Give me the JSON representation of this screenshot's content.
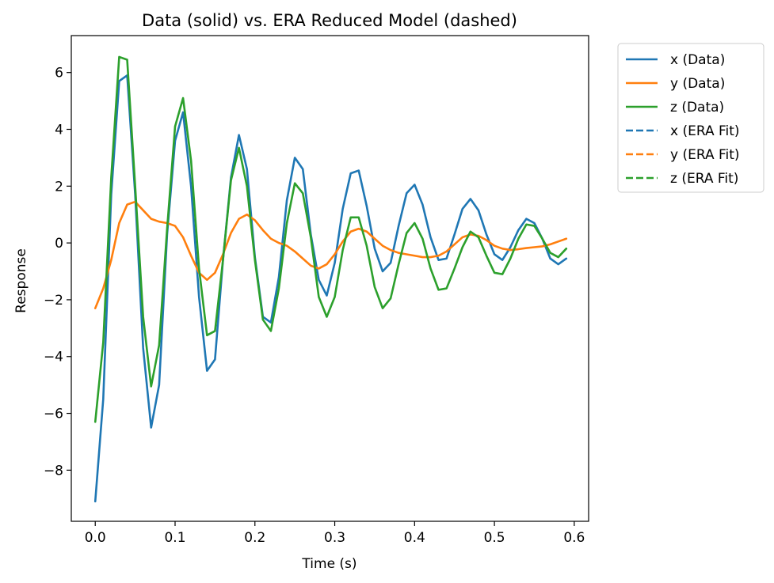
{
  "chart_data": {
    "type": "line",
    "title": "Data (solid) vs. ERA Reduced Model (dashed)",
    "xlabel": "Time (s)",
    "ylabel": "Response",
    "xlim": [
      -0.03,
      0.618
    ],
    "ylim": [
      -9.8,
      7.3
    ],
    "x_ticks": [
      0.0,
      0.1,
      0.2,
      0.3,
      0.4,
      0.5,
      0.6
    ],
    "x_tick_labels": [
      "0.0",
      "0.1",
      "0.2",
      "0.3",
      "0.4",
      "0.5",
      "0.6"
    ],
    "y_ticks": [
      -8,
      -6,
      -4,
      -2,
      0,
      2,
      4,
      6
    ],
    "y_tick_labels": [
      "−8",
      "−6",
      "−4",
      "−2",
      "0",
      "2",
      "4",
      "6"
    ],
    "grid": false,
    "legend_position": "outside-top-right",
    "x": [
      0.0,
      0.01,
      0.02,
      0.03,
      0.04,
      0.05,
      0.06,
      0.07,
      0.08,
      0.09,
      0.1,
      0.11,
      0.12,
      0.13,
      0.14,
      0.15,
      0.16,
      0.17,
      0.18,
      0.19,
      0.2,
      0.21,
      0.22,
      0.23,
      0.24,
      0.25,
      0.26,
      0.27,
      0.28,
      0.29,
      0.3,
      0.31,
      0.32,
      0.33,
      0.34,
      0.35,
      0.36,
      0.37,
      0.38,
      0.39,
      0.4,
      0.41,
      0.42,
      0.43,
      0.44,
      0.45,
      0.46,
      0.47,
      0.48,
      0.49,
      0.5,
      0.51,
      0.52,
      0.53,
      0.54,
      0.55,
      0.56,
      0.57,
      0.58,
      0.59
    ],
    "series": [
      {
        "name": "x (Data)",
        "color": "#1f77b4",
        "dash": "solid",
        "values": [
          -9.1,
          -5.5,
          1.7,
          5.7,
          5.9,
          1.7,
          -3.7,
          -6.5,
          -5.0,
          0.3,
          3.6,
          4.6,
          2.0,
          -1.9,
          -4.5,
          -4.1,
          -0.6,
          2.3,
          3.8,
          2.6,
          -0.5,
          -2.6,
          -2.8,
          -1.2,
          1.5,
          3.0,
          2.6,
          0.3,
          -1.3,
          -1.85,
          -0.7,
          1.2,
          2.45,
          2.55,
          1.3,
          -0.2,
          -1.0,
          -0.7,
          0.6,
          1.75,
          2.05,
          1.35,
          0.2,
          -0.6,
          -0.55,
          0.3,
          1.2,
          1.55,
          1.15,
          0.3,
          -0.4,
          -0.6,
          -0.15,
          0.45,
          0.85,
          0.7,
          0.15,
          -0.55,
          -0.75,
          -0.55
        ]
      },
      {
        "name": "y (Data)",
        "color": "#ff7f0e",
        "dash": "solid",
        "values": [
          -2.3,
          -1.6,
          -0.6,
          0.7,
          1.35,
          1.45,
          1.15,
          0.85,
          0.75,
          0.7,
          0.6,
          0.2,
          -0.45,
          -1.05,
          -1.3,
          -1.05,
          -0.4,
          0.35,
          0.85,
          1.0,
          0.8,
          0.45,
          0.15,
          0.0,
          -0.1,
          -0.3,
          -0.55,
          -0.8,
          -0.9,
          -0.75,
          -0.4,
          0.05,
          0.4,
          0.5,
          0.4,
          0.15,
          -0.1,
          -0.25,
          -0.35,
          -0.4,
          -0.45,
          -0.5,
          -0.5,
          -0.45,
          -0.3,
          -0.05,
          0.2,
          0.3,
          0.25,
          0.1,
          -0.1,
          -0.2,
          -0.25,
          -0.22,
          -0.18,
          -0.15,
          -0.12,
          -0.05,
          0.05,
          0.15
        ]
      },
      {
        "name": "z (Data)",
        "color": "#2ca02c",
        "dash": "solid",
        "values": [
          -6.3,
          -3.5,
          2.3,
          6.55,
          6.45,
          2.0,
          -2.6,
          -5.05,
          -3.6,
          0.5,
          4.1,
          5.1,
          2.9,
          -0.9,
          -3.25,
          -3.1,
          -0.6,
          2.2,
          3.35,
          2.0,
          -0.6,
          -2.7,
          -3.1,
          -1.6,
          0.7,
          2.1,
          1.75,
          0.2,
          -1.9,
          -2.6,
          -1.9,
          -0.25,
          0.9,
          0.9,
          -0.1,
          -1.55,
          -2.3,
          -1.95,
          -0.75,
          0.35,
          0.7,
          0.15,
          -0.9,
          -1.65,
          -1.6,
          -0.9,
          -0.15,
          0.4,
          0.2,
          -0.45,
          -1.05,
          -1.1,
          -0.55,
          0.15,
          0.65,
          0.6,
          0.15,
          -0.35,
          -0.5,
          -0.2
        ]
      },
      {
        "name": "x (ERA Fit)",
        "color": "#1f77b4",
        "dash": "dashed",
        "values": [
          -9.1,
          -5.5,
          1.7,
          5.7,
          5.9,
          1.7,
          -3.7,
          -6.5,
          -5.0,
          0.3,
          3.6,
          4.6,
          2.0,
          -1.9,
          -4.5,
          -4.1,
          -0.6,
          2.3,
          3.8,
          2.6,
          -0.5,
          -2.6,
          -2.8,
          -1.2,
          1.5,
          3.0,
          2.6,
          0.3,
          -1.3,
          -1.85,
          -0.7,
          1.2,
          2.45,
          2.55,
          1.3,
          -0.2,
          -1.0,
          -0.7,
          0.6,
          1.75,
          2.05,
          1.35,
          0.2,
          -0.6,
          -0.55,
          0.3,
          1.2,
          1.55,
          1.15,
          0.3,
          -0.4,
          -0.6,
          -0.15,
          0.45,
          0.85,
          0.7,
          0.15,
          -0.55,
          -0.75,
          -0.55
        ]
      },
      {
        "name": "y (ERA Fit)",
        "color": "#ff7f0e",
        "dash": "dashed",
        "values": [
          -2.3,
          -1.6,
          -0.6,
          0.7,
          1.35,
          1.45,
          1.15,
          0.85,
          0.75,
          0.7,
          0.6,
          0.2,
          -0.45,
          -1.05,
          -1.3,
          -1.05,
          -0.4,
          0.35,
          0.85,
          1.0,
          0.8,
          0.45,
          0.15,
          0.0,
          -0.1,
          -0.3,
          -0.55,
          -0.8,
          -0.9,
          -0.75,
          -0.4,
          0.05,
          0.4,
          0.5,
          0.4,
          0.15,
          -0.1,
          -0.25,
          -0.35,
          -0.4,
          -0.45,
          -0.5,
          -0.5,
          -0.45,
          -0.3,
          -0.05,
          0.2,
          0.3,
          0.25,
          0.1,
          -0.1,
          -0.2,
          -0.25,
          -0.22,
          -0.18,
          -0.15,
          -0.12,
          -0.05,
          0.05,
          0.15
        ]
      },
      {
        "name": "z (ERA Fit)",
        "color": "#2ca02c",
        "dash": "dashed",
        "values": [
          -6.3,
          -3.5,
          2.3,
          6.55,
          6.45,
          2.0,
          -2.6,
          -5.05,
          -3.6,
          0.5,
          4.1,
          5.1,
          2.9,
          -0.9,
          -3.25,
          -3.1,
          -0.6,
          2.2,
          3.35,
          2.0,
          -0.6,
          -2.7,
          -3.1,
          -1.6,
          0.7,
          2.1,
          1.75,
          0.2,
          -1.9,
          -2.6,
          -1.9,
          -0.25,
          0.9,
          0.9,
          -0.1,
          -1.55,
          -2.3,
          -1.95,
          -0.75,
          0.35,
          0.7,
          0.15,
          -0.9,
          -1.65,
          -1.6,
          -0.9,
          -0.15,
          0.4,
          0.2,
          -0.45,
          -1.05,
          -1.1,
          -0.55,
          0.15,
          0.65,
          0.6,
          0.15,
          -0.35,
          -0.5,
          -0.2
        ]
      }
    ]
  }
}
